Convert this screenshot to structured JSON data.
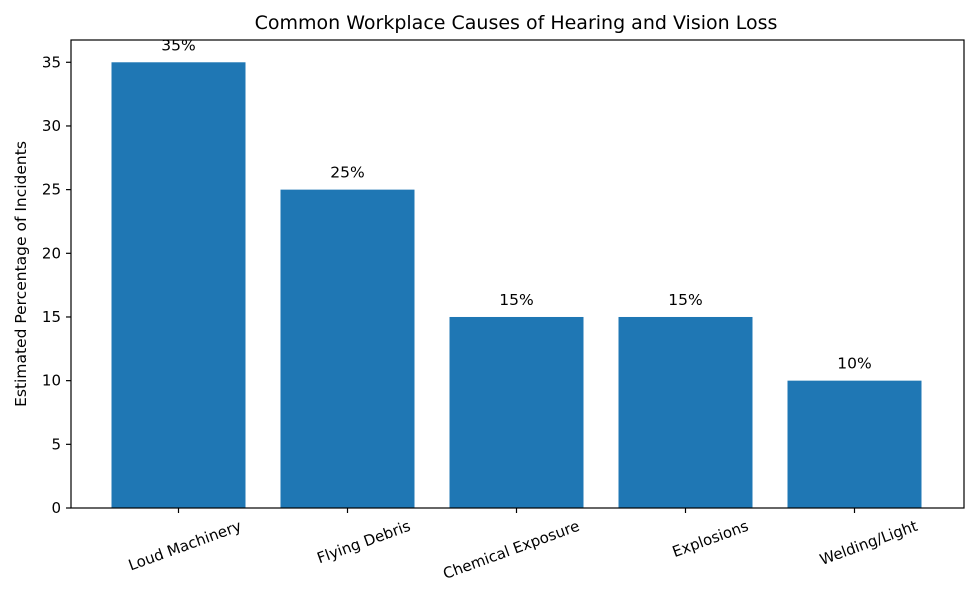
{
  "chart_data": {
    "type": "bar",
    "title": "Common Workplace Causes of Hearing and Vision Loss",
    "xlabel": "",
    "ylabel": "Estimated Percentage of Incidents",
    "categories": [
      "Loud Machinery",
      "Flying Debris",
      "Chemical Exposure",
      "Explosions",
      "Welding/Light"
    ],
    "values": [
      35,
      25,
      15,
      15,
      10
    ],
    "data_labels": [
      "35%",
      "25%",
      "15%",
      "15%",
      "10%"
    ],
    "ylim": [
      0,
      36.75
    ],
    "yticks": [
      0,
      5,
      10,
      15,
      20,
      25,
      30,
      35
    ],
    "bar_color": "#1f77b4",
    "grid": false,
    "x_tick_rotation": "20 degrees counter-clockwise"
  }
}
